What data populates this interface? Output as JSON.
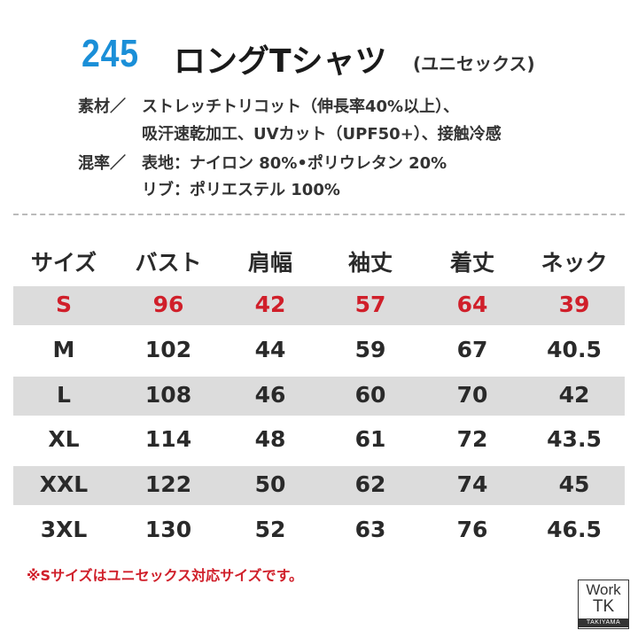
{
  "header": {
    "number": "245",
    "title": "ロングTシャツ",
    "subtitle": "(ユニセックス)"
  },
  "specs": [
    {
      "label": "素材／",
      "lines": [
        "ストレッチトリコット（伸長率40%以上）、",
        "吸汗速乾加工、UVカット（UPF50+）、接触冷感"
      ]
    },
    {
      "label": "混率／",
      "lines": [
        "表地：ナイロン 80%•ポリウレタン 20%",
        "リブ：ポリエステル 100%"
      ]
    }
  ],
  "table": {
    "columns": [
      "サイズ",
      "バスト",
      "肩幅",
      "袖丈",
      "着丈",
      "ネック"
    ],
    "rows": [
      [
        "S",
        "96",
        "42",
        "57",
        "64",
        "39"
      ],
      [
        "M",
        "102",
        "44",
        "59",
        "67",
        "40.5"
      ],
      [
        "L",
        "108",
        "46",
        "60",
        "70",
        "42"
      ],
      [
        "XL",
        "114",
        "48",
        "61",
        "72",
        "43.5"
      ],
      [
        "XXL",
        "122",
        "50",
        "62",
        "74",
        "45"
      ],
      [
        "3XL",
        "130",
        "52",
        "63",
        "76",
        "46.5"
      ]
    ]
  },
  "note": "※Sサイズはユニセックス対応サイズです。",
  "logo": {
    "line1": "Work",
    "line2": "TK",
    "line3": "TAKIYAMA"
  }
}
